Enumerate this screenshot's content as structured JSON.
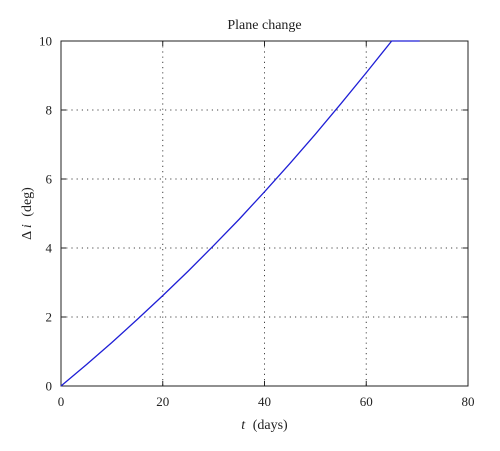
{
  "chart_data": {
    "type": "line",
    "title": "Plane change",
    "xlabel": {
      "var": "t",
      "unit": "(days)"
    },
    "ylabel": {
      "prefix": "Δ",
      "var": "i",
      "unit": "(deg)"
    },
    "xlim": [
      0,
      80
    ],
    "ylim": [
      0,
      10
    ],
    "xticks": [
      0,
      20,
      40,
      60,
      80
    ],
    "yticks": [
      0,
      2,
      4,
      6,
      8,
      10
    ],
    "grid": true,
    "series": [
      {
        "color": "#1f1fd6",
        "x": [
          0,
          5,
          10,
          15,
          20,
          25,
          30,
          35,
          40,
          45,
          50,
          55,
          60,
          65,
          70.5
        ],
        "y": [
          0,
          0.62,
          1.26,
          1.93,
          2.62,
          3.33,
          4.07,
          4.83,
          5.63,
          6.45,
          7.3,
          8.18,
          9.08,
          10.0,
          10.0
        ]
      }
    ]
  }
}
